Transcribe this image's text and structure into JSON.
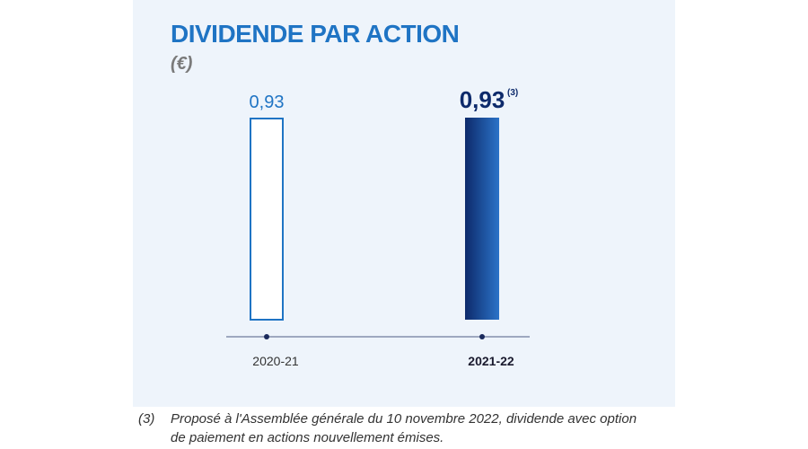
{
  "title": "DIVIDENDE PAR ACTION",
  "unit": "(€)",
  "chart_data": {
    "type": "bar",
    "categories": [
      "2020-21",
      "2021-22"
    ],
    "values": [
      0.93,
      0.93
    ],
    "value_labels": [
      "0,93",
      "0,93"
    ],
    "value_label_notes": [
      "",
      "(3)"
    ],
    "ylim": [
      0,
      0.93
    ],
    "grid": false,
    "colors": {
      "outline_bar": "#1f74c4",
      "filled_bar_dark": "#0d2a6b",
      "filled_bar_light": "#2b73c8",
      "axis": "#1a2a5c"
    }
  },
  "footnote": {
    "mark": "(3)",
    "text": "Proposé à l'Assemblée générale du 10 novembre 2022, dividende avec option de paiement en actions nouvellement émises."
  }
}
